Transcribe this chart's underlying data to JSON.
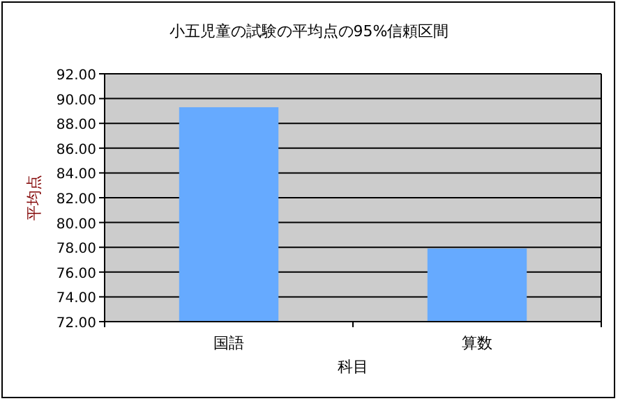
{
  "chart_data": {
    "type": "bar",
    "title": "小五児童の試験の平均点の95%信頼区間",
    "xlabel": "科目",
    "ylabel": "平均点",
    "categories": [
      "国語",
      "算数"
    ],
    "values": [
      89.3,
      77.9
    ],
    "color": "#66aaff",
    "ylim": [
      72,
      92
    ],
    "yticks": [
      {
        "value": 72,
        "label": "72.00"
      },
      {
        "value": 74,
        "label": "74.00"
      },
      {
        "value": 76,
        "label": "76.00"
      },
      {
        "value": 78,
        "label": "78.00"
      },
      {
        "value": 80,
        "label": "80.00"
      },
      {
        "value": 82,
        "label": "82.00"
      },
      {
        "value": 84,
        "label": "84.00"
      },
      {
        "value": 86,
        "label": "86.00"
      },
      {
        "value": 88,
        "label": "88.00"
      },
      {
        "value": 90,
        "label": "90.00"
      },
      {
        "value": 92,
        "label": "92.00"
      }
    ],
    "grid": "y"
  }
}
